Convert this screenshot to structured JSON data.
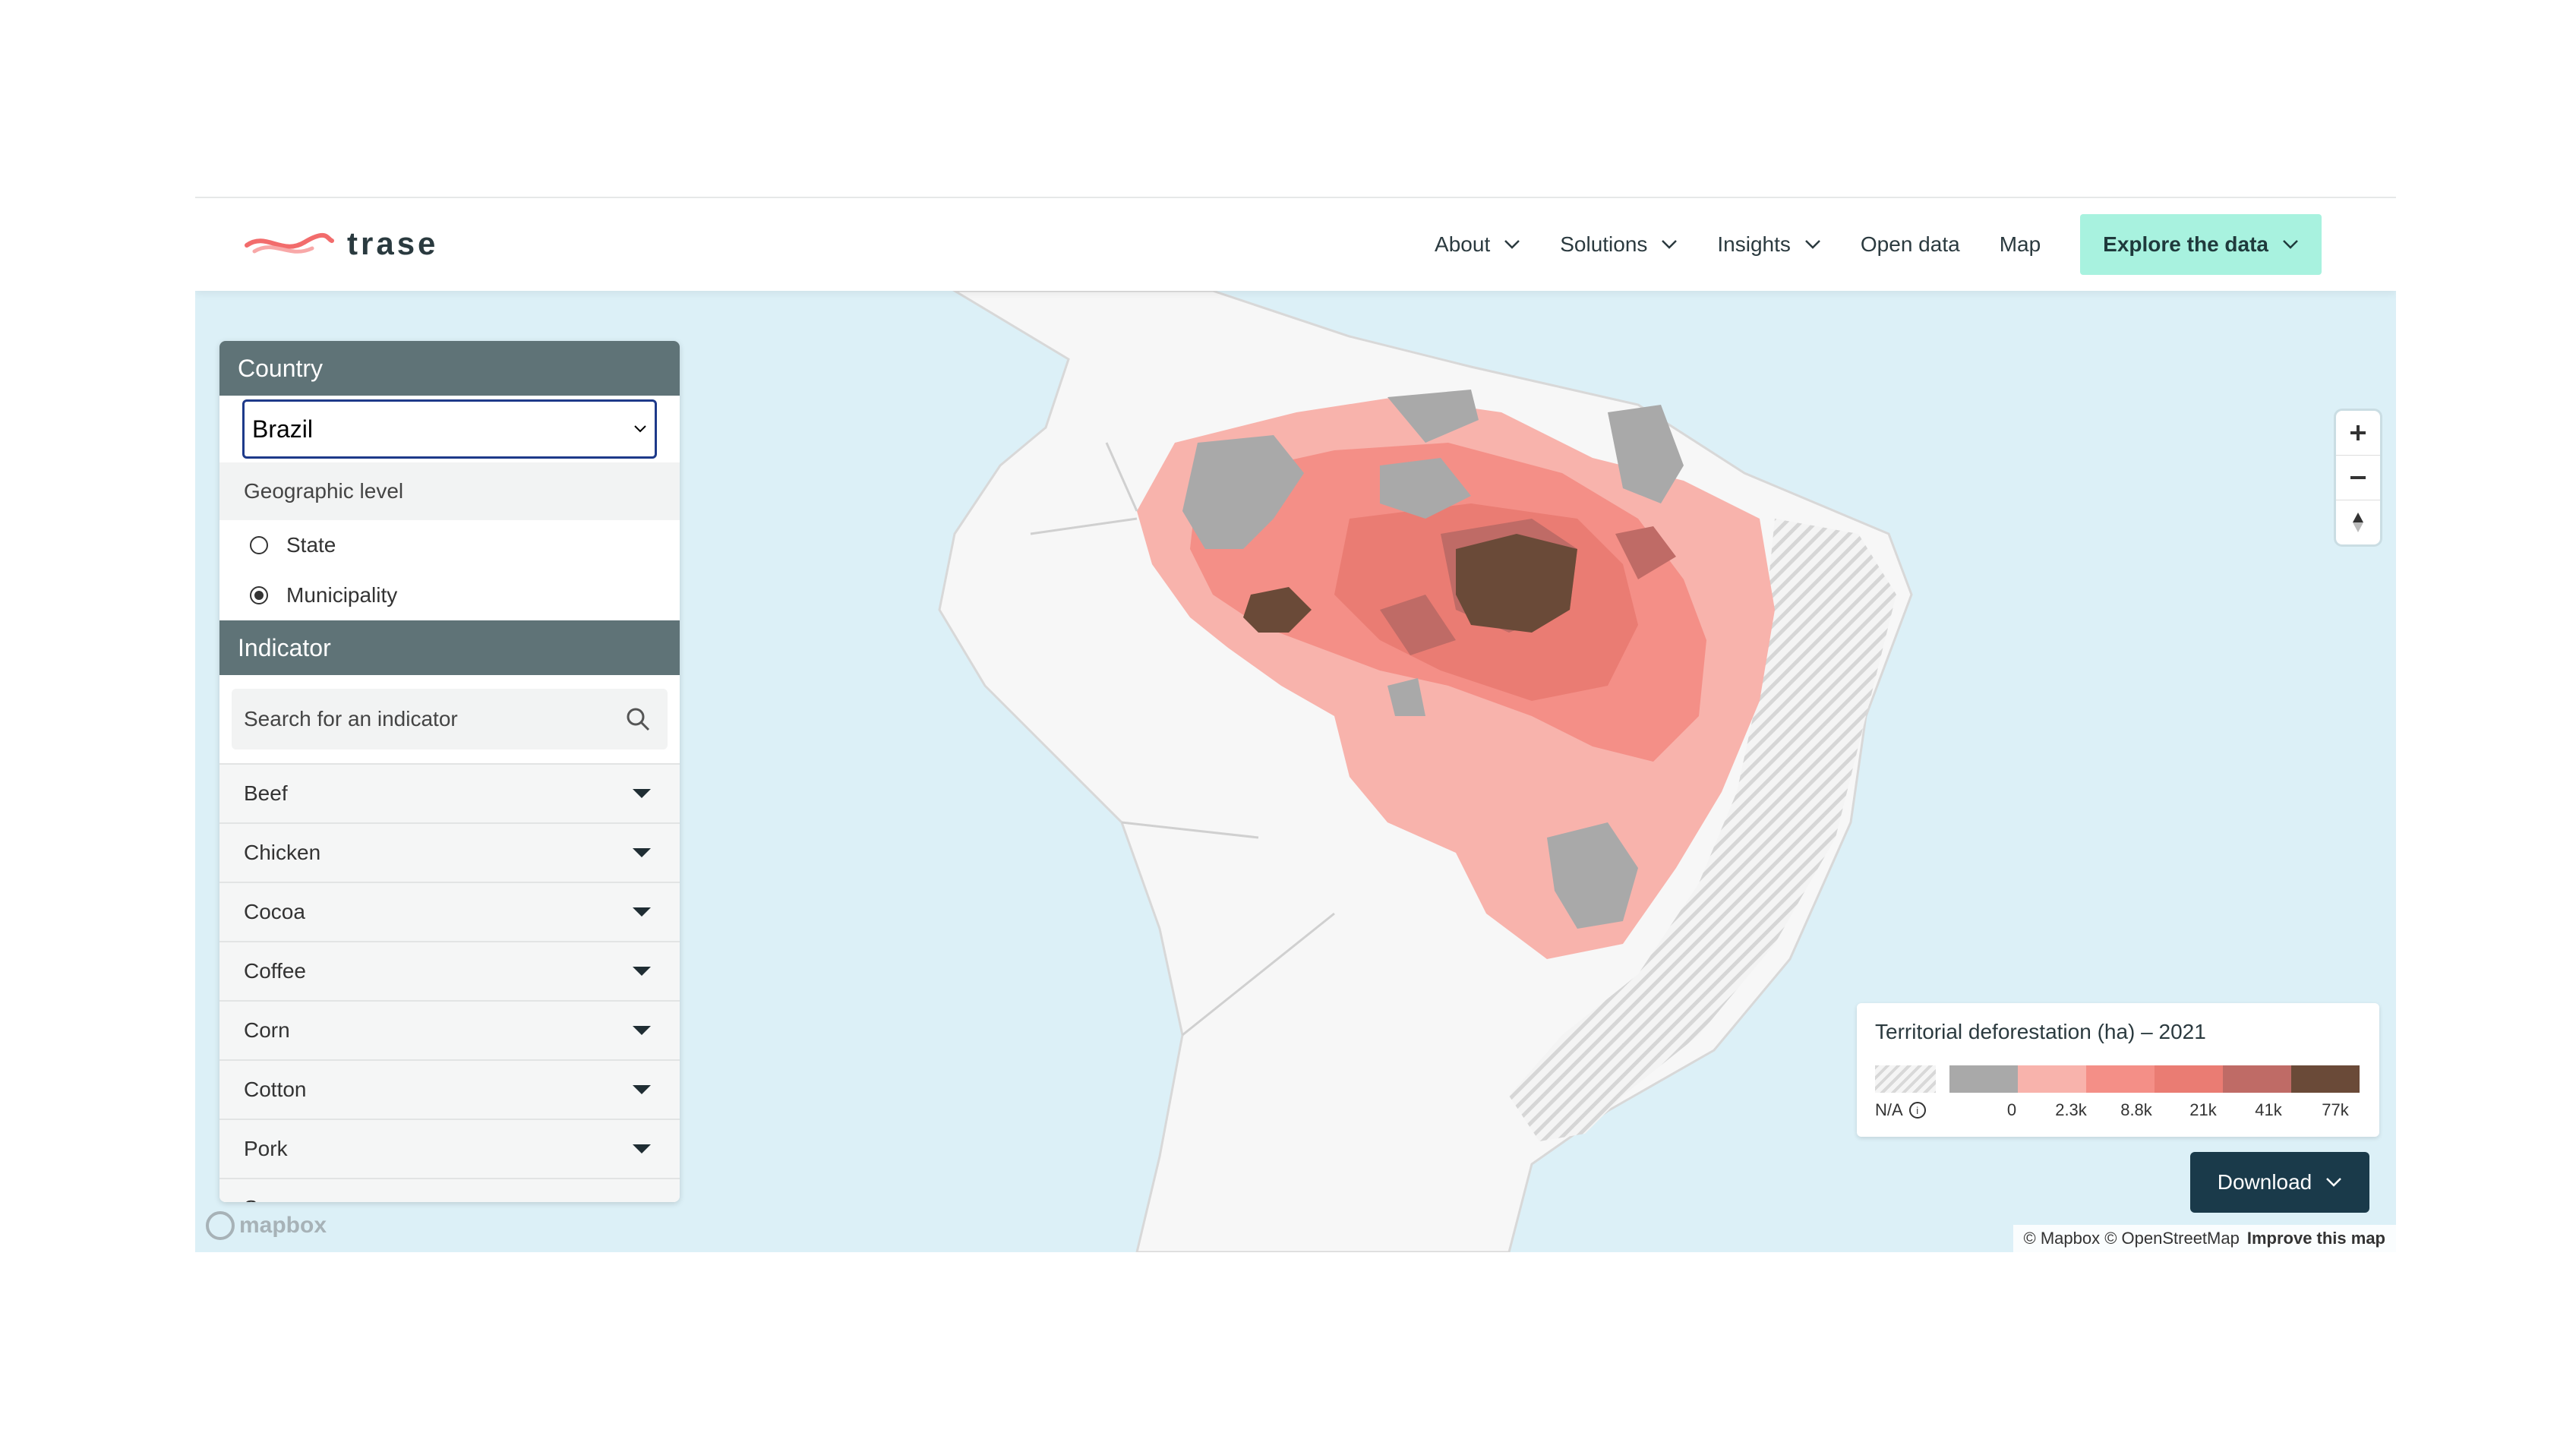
{
  "header": {
    "logo_text": "trase",
    "nav": [
      {
        "label": "About",
        "dropdown": true
      },
      {
        "label": "Solutions",
        "dropdown": true
      },
      {
        "label": "Insights",
        "dropdown": true
      },
      {
        "label": "Open data",
        "dropdown": false
      },
      {
        "label": "Map",
        "dropdown": false
      }
    ],
    "cta_label": "Explore the data",
    "cta_color": "#a8f2df"
  },
  "panel": {
    "country_heading": "Country",
    "country_value": "Brazil",
    "geo_level_label": "Geographic level",
    "geo_options": [
      {
        "label": "State",
        "selected": false
      },
      {
        "label": "Municipality",
        "selected": true
      }
    ],
    "indicator_heading": "Indicator",
    "search_placeholder": "Search for an indicator",
    "indicators": [
      "Beef",
      "Chicken",
      "Cocoa",
      "Coffee",
      "Corn",
      "Cotton",
      "Pork",
      "Soy"
    ]
  },
  "legend": {
    "title": "Territorial deforestation (ha) – 2021",
    "na_label": "N/A",
    "ticks": [
      "0",
      "2.3k",
      "8.8k",
      "21k",
      "41k",
      "77k"
    ],
    "colors": [
      "#a9a9a9",
      "#f8b3ac",
      "#f48f87",
      "#ea7c73",
      "#bf6b66",
      "#6a4a38"
    ]
  },
  "download_label": "Download",
  "attribution": {
    "text": "© Mapbox © OpenStreetMap",
    "link": "Improve this map"
  },
  "mapbox_logo": "mapbox"
}
